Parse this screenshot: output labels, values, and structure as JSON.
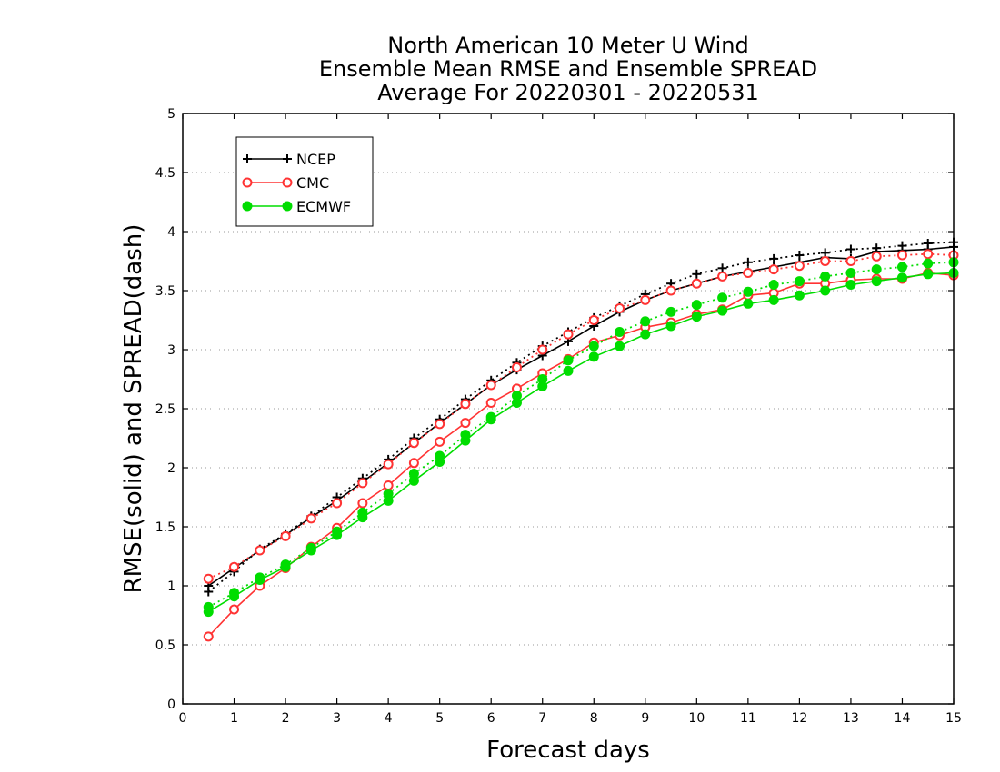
{
  "chart_data": {
    "type": "line",
    "title": [
      "North American 10 Meter U Wind",
      "Ensemble Mean RMSE and Ensemble SPREAD",
      "Average For 20220301 - 20220531"
    ],
    "xlabel": "Forecast days",
    "ylabel": "RMSE(solid) and SPREAD(dash)",
    "xlim": [
      0,
      15
    ],
    "ylim": [
      0,
      5
    ],
    "xticks": [
      "0",
      "1",
      "2",
      "3",
      "4",
      "5",
      "6",
      "7",
      "8",
      "9",
      "10",
      "11",
      "12",
      "13",
      "14",
      "15"
    ],
    "yticks": [
      "0",
      "0.5",
      "1",
      "1.5",
      "2",
      "2.5",
      "3",
      "3.5",
      "4",
      "4.5",
      "5"
    ],
    "grid": "horizontal dotted",
    "legend_position": "top-left",
    "x": [
      0.5,
      1,
      1.5,
      2,
      2.5,
      3,
      3.5,
      4,
      4.5,
      5,
      5.5,
      6,
      6.5,
      7,
      7.5,
      8,
      8.5,
      9,
      9.5,
      10,
      10.5,
      11,
      11.5,
      12,
      12.5,
      13,
      13.5,
      14,
      14.5,
      15
    ],
    "series": [
      {
        "name": "NCEP",
        "color": "#000000",
        "marker": "plus",
        "rmse": [
          1.0,
          1.15,
          1.3,
          1.43,
          1.58,
          1.72,
          1.88,
          2.04,
          2.21,
          2.38,
          2.54,
          2.7,
          2.83,
          2.95,
          3.07,
          3.2,
          3.32,
          3.42,
          3.5,
          3.56,
          3.62,
          3.66,
          3.7,
          3.74,
          3.78,
          3.77,
          3.83,
          3.84,
          3.85,
          3.87
        ],
        "spread": [
          0.95,
          1.12,
          1.31,
          1.44,
          1.59,
          1.75,
          1.91,
          2.07,
          2.25,
          2.41,
          2.58,
          2.74,
          2.89,
          3.03,
          3.15,
          3.27,
          3.37,
          3.47,
          3.56,
          3.64,
          3.69,
          3.74,
          3.77,
          3.8,
          3.82,
          3.85,
          3.86,
          3.88,
          3.9,
          3.91
        ]
      },
      {
        "name": "CMC",
        "color": "#ff3333",
        "marker": "open-circle",
        "rmse": [
          0.57,
          0.8,
          1.0,
          1.15,
          1.33,
          1.49,
          1.7,
          1.85,
          2.04,
          2.22,
          2.38,
          2.55,
          2.67,
          2.8,
          2.92,
          3.06,
          3.12,
          3.19,
          3.23,
          3.3,
          3.34,
          3.46,
          3.48,
          3.56,
          3.56,
          3.59,
          3.6,
          3.6,
          3.65,
          3.63
        ],
        "spread": [
          1.06,
          1.16,
          1.3,
          1.42,
          1.57,
          1.7,
          1.87,
          2.03,
          2.21,
          2.37,
          2.54,
          2.7,
          2.85,
          3.0,
          3.13,
          3.25,
          3.35,
          3.42,
          3.5,
          3.56,
          3.62,
          3.65,
          3.68,
          3.71,
          3.75,
          3.75,
          3.79,
          3.8,
          3.81,
          3.8
        ]
      },
      {
        "name": "ECMWF",
        "color": "#00dd00",
        "marker": "filled-circle",
        "rmse": [
          0.78,
          0.91,
          1.05,
          1.16,
          1.3,
          1.43,
          1.58,
          1.72,
          1.89,
          2.05,
          2.23,
          2.41,
          2.55,
          2.69,
          2.82,
          2.94,
          3.03,
          3.13,
          3.2,
          3.28,
          3.33,
          3.39,
          3.42,
          3.46,
          3.5,
          3.55,
          3.58,
          3.61,
          3.64,
          3.65
        ],
        "spread": [
          0.82,
          0.94,
          1.07,
          1.18,
          1.32,
          1.46,
          1.62,
          1.78,
          1.95,
          2.1,
          2.28,
          2.43,
          2.61,
          2.75,
          2.91,
          3.03,
          3.15,
          3.24,
          3.32,
          3.38,
          3.44,
          3.49,
          3.55,
          3.58,
          3.62,
          3.65,
          3.68,
          3.7,
          3.73,
          3.74
        ]
      }
    ]
  }
}
